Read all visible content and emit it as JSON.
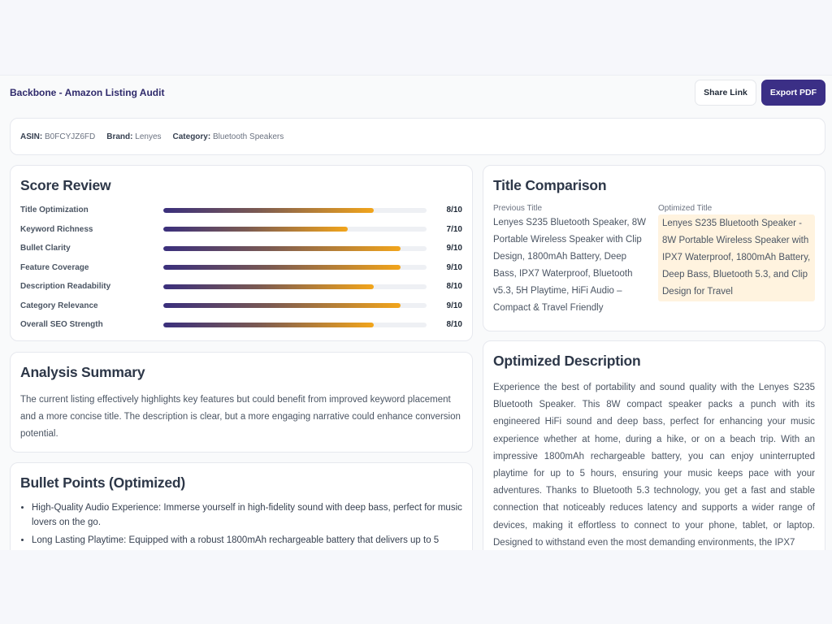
{
  "header": {
    "title": "Backbone - Amazon Listing Audit",
    "share_label": "Share Link",
    "export_label": "Export PDF"
  },
  "meta": {
    "asin_label": "ASIN:",
    "asin": "B0FCYJZ6FD",
    "brand_label": "Brand:",
    "brand": "Lenyes",
    "category_label": "Category:",
    "category": "Bluetooth Speakers"
  },
  "score_review": {
    "title": "Score Review",
    "rows": [
      {
        "label": "Title Optimization",
        "score": 8,
        "display": "8/10"
      },
      {
        "label": "Keyword Richness",
        "score": 7,
        "display": "7/10"
      },
      {
        "label": "Bullet Clarity",
        "score": 9,
        "display": "9/10"
      },
      {
        "label": "Feature Coverage",
        "score": 9,
        "display": "9/10"
      },
      {
        "label": "Description Readability",
        "score": 8,
        "display": "8/10"
      },
      {
        "label": "Category Relevance",
        "score": 9,
        "display": "9/10"
      },
      {
        "label": "Overall SEO Strength",
        "score": 8,
        "display": "8/10"
      }
    ],
    "max": 10
  },
  "analysis": {
    "title": "Analysis Summary",
    "text": "The current listing effectively highlights key features but could benefit from improved keyword placement and a more concise title. The description is clear, but a more engaging narrative could enhance conversion potential."
  },
  "bullets": {
    "title": "Bullet Points (Optimized)",
    "items": [
      "High-Quality Audio Experience: Immerse yourself in high-fidelity sound with deep bass, perfect for music lovers on the go.",
      "Long Lasting Playtime: Equipped with a robust 1800mAh rechargeable battery that delivers up to 5"
    ]
  },
  "title_comparison": {
    "title": "Title Comparison",
    "previous_label": "Previous Title",
    "previous": "Lenyes S235 Bluetooth Speaker, 8W Portable Wireless Speaker with Clip Design, 1800mAh Battery, Deep Bass, IPX7 Waterproof, Bluetooth v5.3, 5H Playtime, HiFi Audio – Compact & Travel Friendly",
    "optimized_label": "Optimized Title",
    "optimized": "Lenyes S235 Bluetooth Speaker - 8W Portable Wireless Speaker with IPX7 Waterproof, 1800mAh Battery, Deep Bass, Bluetooth 5.3, and Clip Design for Travel"
  },
  "description": {
    "title": "Optimized Description",
    "text": "Experience the best of portability and sound quality with the Lenyes S235 Bluetooth Speaker. This 8W compact speaker packs a punch with its engineered HiFi sound and deep bass, perfect for enhancing your music experience whether at home, during a hike, or on a beach trip. With an impressive 1800mAh rechargeable battery, you can enjoy uninterrupted playtime for up to 5 hours, ensuring your music keeps pace with your adventures. Thanks to Bluetooth 5.3 technology, you get a fast and stable connection that noticeably reduces latency and supports a wider range of devices, making it effortless to connect to your phone, tablet, or laptop. Designed to withstand even the most demanding environments, the IPX7"
  }
}
